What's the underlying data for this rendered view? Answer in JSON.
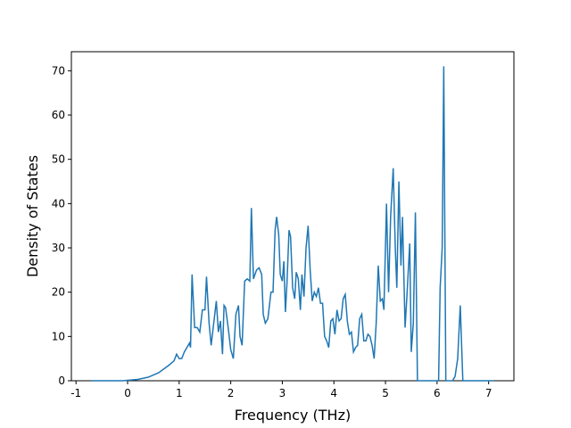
{
  "chart_data": {
    "type": "line",
    "x_label": "Frequency (THz)",
    "y_label": "Density of States",
    "xlim": [
      -1.09,
      7.49
    ],
    "ylim": [
      0,
      74.3
    ],
    "xticks": [
      -1,
      0,
      1,
      2,
      3,
      4,
      5,
      6,
      7
    ],
    "yticks": [
      0,
      10,
      20,
      30,
      40,
      50,
      60,
      70
    ],
    "series": [
      {
        "color": "#1f77b4",
        "x": [
          -0.7,
          -0.4,
          -0.1,
          0.0,
          0.2,
          0.4,
          0.6,
          0.8,
          0.9,
          0.95,
          1.0,
          1.05,
          1.1,
          1.2,
          1.22,
          1.25,
          1.3,
          1.35,
          1.4,
          1.45,
          1.5,
          1.53,
          1.58,
          1.62,
          1.68,
          1.72,
          1.76,
          1.8,
          1.84,
          1.87,
          1.9,
          1.95,
          2.0,
          2.05,
          2.1,
          2.15,
          2.18,
          2.22,
          2.27,
          2.32,
          2.37,
          2.4,
          2.44,
          2.5,
          2.55,
          2.6,
          2.63,
          2.67,
          2.72,
          2.78,
          2.82,
          2.86,
          2.89,
          2.93,
          2.96,
          3.0,
          3.03,
          3.06,
          3.09,
          3.13,
          3.16,
          3.2,
          3.24,
          3.27,
          3.31,
          3.35,
          3.38,
          3.42,
          3.46,
          3.5,
          3.54,
          3.58,
          3.62,
          3.66,
          3.7,
          3.74,
          3.78,
          3.82,
          3.86,
          3.9,
          3.94,
          3.98,
          4.02,
          4.06,
          4.1,
          4.14,
          4.18,
          4.22,
          4.26,
          4.3,
          4.34,
          4.38,
          4.42,
          4.46,
          4.5,
          4.54,
          4.58,
          4.62,
          4.66,
          4.7,
          4.74,
          4.78,
          4.82,
          4.86,
          4.9,
          4.94,
          4.97,
          5.02,
          5.06,
          5.1,
          5.15,
          5.19,
          5.22,
          5.26,
          5.3,
          5.33,
          5.38,
          5.42,
          5.47,
          5.5,
          5.54,
          5.58,
          5.62,
          5.8,
          6.03,
          6.06,
          6.1,
          6.13,
          6.17,
          6.3,
          6.35,
          6.4,
          6.45,
          6.5,
          7.1
        ],
        "values": [
          0,
          0,
          0,
          0.1,
          0.3,
          0.8,
          1.8,
          3.5,
          4.5,
          6,
          5,
          5,
          6.5,
          8.5,
          7.5,
          24,
          12,
          12,
          11,
          16,
          16,
          23.5,
          13,
          8,
          14,
          18,
          11,
          13.5,
          6,
          17,
          16.5,
          12,
          7,
          5,
          15,
          17,
          10,
          8,
          22.5,
          23,
          22.5,
          39,
          23,
          25,
          25.5,
          24,
          15,
          13,
          14,
          20,
          20,
          34,
          37,
          33,
          24,
          22.5,
          27,
          15.5,
          22,
          34,
          32.5,
          21,
          18.5,
          24.5,
          23,
          16,
          24,
          19,
          30,
          35,
          25,
          18,
          20,
          19,
          21,
          17.5,
          17.5,
          10,
          9,
          7.5,
          13.5,
          14,
          10.5,
          16,
          13.5,
          14,
          18.5,
          19.5,
          13.5,
          10.5,
          11,
          6.5,
          7.5,
          8,
          14,
          15,
          9,
          9,
          10.5,
          10,
          8,
          5,
          13,
          26,
          18,
          18.5,
          16,
          40,
          20,
          37,
          48,
          30,
          21,
          45,
          26,
          37,
          12,
          20,
          31,
          6.5,
          13,
          38,
          0,
          0,
          0,
          21,
          30,
          71,
          0,
          0,
          1,
          5,
          17,
          0,
          0
        ]
      }
    ]
  }
}
